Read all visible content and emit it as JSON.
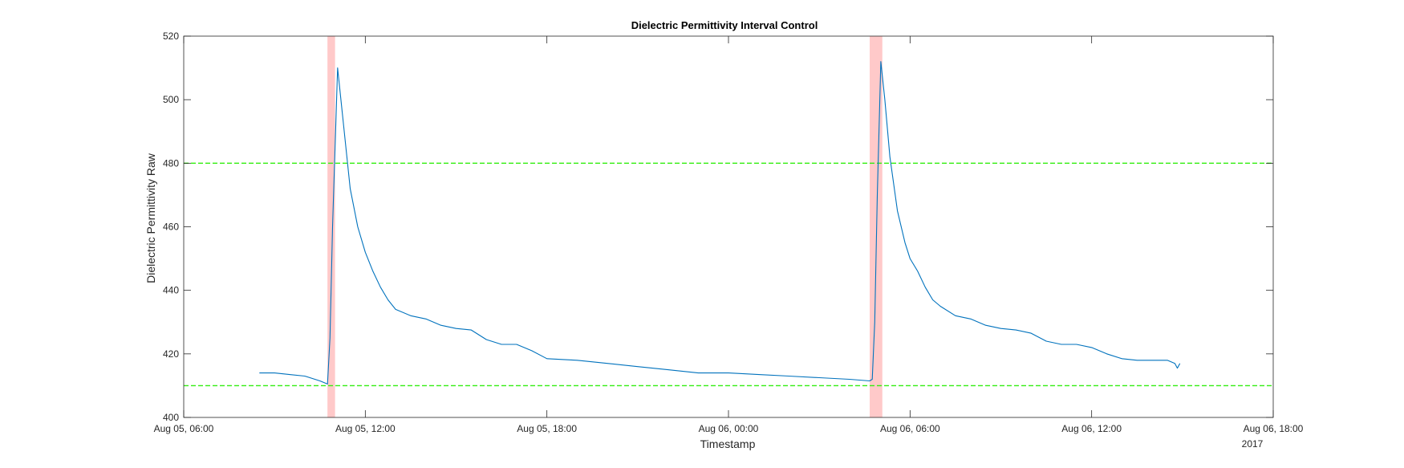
{
  "chart_data": {
    "type": "line",
    "title": "Dielectric Permittivity Interval Control",
    "xlabel": "Timestamp",
    "ylabel": "Dielectric Permittivity Raw",
    "x_secondary_label": "2017",
    "xlim": [
      "2017-08-05T06:00",
      "2017-08-06T18:00"
    ],
    "ylim": [
      400,
      520
    ],
    "x_ticks": [
      {
        "t": "2017-08-05T06:00",
        "label": "Aug 05, 06:00"
      },
      {
        "t": "2017-08-05T12:00",
        "label": "Aug 05, 12:00"
      },
      {
        "t": "2017-08-05T18:00",
        "label": "Aug 05, 18:00"
      },
      {
        "t": "2017-08-06T00:00",
        "label": "Aug 06, 00:00"
      },
      {
        "t": "2017-08-06T06:00",
        "label": "Aug 06, 06:00"
      },
      {
        "t": "2017-08-06T12:00",
        "label": "Aug 06, 12:00"
      },
      {
        "t": "2017-08-06T18:00",
        "label": "Aug 06, 18:00"
      }
    ],
    "y_ticks": [
      400,
      420,
      440,
      460,
      480,
      500,
      520
    ],
    "grid": false,
    "reference_lines": [
      {
        "y": 480,
        "color": "#33ee11",
        "style": "dashed"
      },
      {
        "y": 410,
        "color": "#33ee11",
        "style": "dashed"
      }
    ],
    "shaded_intervals": [
      {
        "start": "2017-08-05T10:45",
        "end": "2017-08-05T11:00",
        "color": "#ffc9c9"
      },
      {
        "start": "2017-08-06T04:40",
        "end": "2017-08-06T05:05",
        "color": "#ffc9c9"
      }
    ],
    "series": [
      {
        "color": "#0072bd",
        "points": [
          [
            "2017-08-05T08:30",
            414
          ],
          [
            "2017-08-05T09:00",
            414
          ],
          [
            "2017-08-05T09:30",
            413.5
          ],
          [
            "2017-08-05T10:00",
            413
          ],
          [
            "2017-08-05T10:30",
            411.5
          ],
          [
            "2017-08-05T10:45",
            410.5
          ],
          [
            "2017-08-05T10:50",
            425
          ],
          [
            "2017-08-05T10:55",
            460
          ],
          [
            "2017-08-05T11:05",
            510
          ],
          [
            "2017-08-05T11:15",
            495
          ],
          [
            "2017-08-05T11:30",
            472
          ],
          [
            "2017-08-05T11:45",
            460
          ],
          [
            "2017-08-05T12:00",
            452
          ],
          [
            "2017-08-05T12:15",
            446
          ],
          [
            "2017-08-05T12:30",
            441
          ],
          [
            "2017-08-05T12:45",
            437
          ],
          [
            "2017-08-05T13:00",
            434
          ],
          [
            "2017-08-05T13:30",
            432
          ],
          [
            "2017-08-05T14:00",
            431
          ],
          [
            "2017-08-05T14:30",
            429
          ],
          [
            "2017-08-05T15:00",
            428
          ],
          [
            "2017-08-05T15:30",
            427.5
          ],
          [
            "2017-08-05T16:00",
            424.5
          ],
          [
            "2017-08-05T16:30",
            423
          ],
          [
            "2017-08-05T17:00",
            423
          ],
          [
            "2017-08-05T17:30",
            421
          ],
          [
            "2017-08-05T18:00",
            418.5
          ],
          [
            "2017-08-05T19:00",
            418
          ],
          [
            "2017-08-05T20:00",
            417
          ],
          [
            "2017-08-05T21:00",
            416
          ],
          [
            "2017-08-05T22:00",
            415
          ],
          [
            "2017-08-05T23:00",
            414
          ],
          [
            "2017-08-06T00:00",
            414
          ],
          [
            "2017-08-06T01:00",
            413.5
          ],
          [
            "2017-08-06T02:00",
            413
          ],
          [
            "2017-08-06T03:00",
            412.5
          ],
          [
            "2017-08-06T04:00",
            412
          ],
          [
            "2017-08-06T04:40",
            411.5
          ],
          [
            "2017-08-06T04:45",
            412
          ],
          [
            "2017-08-06T04:50",
            430
          ],
          [
            "2017-08-06T04:55",
            470
          ],
          [
            "2017-08-06T05:02",
            512
          ],
          [
            "2017-08-06T05:10",
            500
          ],
          [
            "2017-08-06T05:20",
            482
          ],
          [
            "2017-08-06T05:35",
            465
          ],
          [
            "2017-08-06T05:50",
            455
          ],
          [
            "2017-08-06T06:00",
            450
          ],
          [
            "2017-08-06T06:15",
            446
          ],
          [
            "2017-08-06T06:30",
            441
          ],
          [
            "2017-08-06T06:45",
            437
          ],
          [
            "2017-08-06T07:00",
            435
          ],
          [
            "2017-08-06T07:30",
            432
          ],
          [
            "2017-08-06T08:00",
            431
          ],
          [
            "2017-08-06T08:30",
            429
          ],
          [
            "2017-08-06T09:00",
            428
          ],
          [
            "2017-08-06T09:30",
            427.5
          ],
          [
            "2017-08-06T10:00",
            426.5
          ],
          [
            "2017-08-06T10:30",
            424
          ],
          [
            "2017-08-06T11:00",
            423
          ],
          [
            "2017-08-06T11:30",
            423
          ],
          [
            "2017-08-06T12:00",
            422
          ],
          [
            "2017-08-06T12:30",
            420
          ],
          [
            "2017-08-06T13:00",
            418.5
          ],
          [
            "2017-08-06T13:30",
            418
          ],
          [
            "2017-08-06T14:00",
            418
          ],
          [
            "2017-08-06T14:30",
            418
          ],
          [
            "2017-08-06T14:45",
            417
          ],
          [
            "2017-08-06T14:50",
            415.5
          ],
          [
            "2017-08-06T14:55",
            417
          ]
        ]
      }
    ]
  }
}
